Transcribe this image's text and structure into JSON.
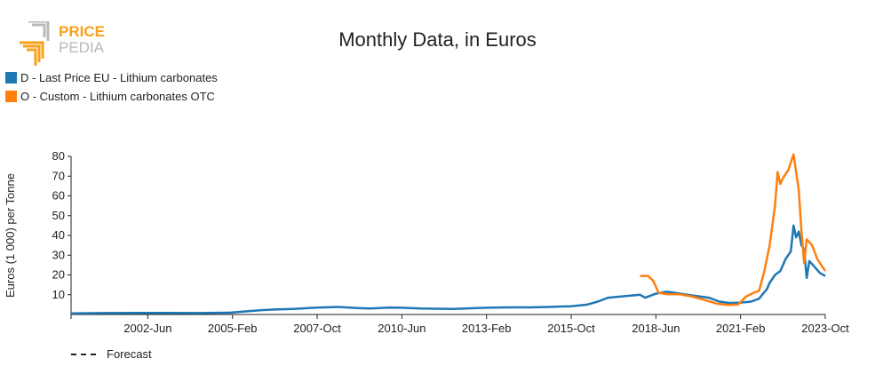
{
  "logo": {
    "line1": "PRICE",
    "line2": "PEDIA"
  },
  "chart_data": {
    "type": "line",
    "title": "Monthly Data, in Euros",
    "xlabel": "",
    "ylabel": "Euros (1 000) per Tonne",
    "ylim": [
      0,
      80
    ],
    "xlim": [
      "2000-01",
      "2023-10"
    ],
    "x_ticks": [
      "2002-Jun",
      "2005-Feb",
      "2007-Oct",
      "2010-Jun",
      "2013-Feb",
      "2015-Oct",
      "2018-Jun",
      "2021-Feb",
      "2023-Oct"
    ],
    "x_tick_dates": [
      "2002-06",
      "2005-02",
      "2007-10",
      "2010-06",
      "2013-02",
      "2015-10",
      "2018-06",
      "2021-02",
      "2023-10"
    ],
    "y_ticks": [
      10,
      20,
      30,
      40,
      50,
      60,
      70,
      80
    ],
    "legend_position": "top-left",
    "series": [
      {
        "name": "D - Last Price EU - Lithium carbonates",
        "color": "#1f77b4",
        "points": [
          [
            "2000-01",
            0.6
          ],
          [
            "2001-01",
            0.7
          ],
          [
            "2002-01",
            0.8
          ],
          [
            "2003-01",
            0.8
          ],
          [
            "2004-01",
            0.7
          ],
          [
            "2005-01",
            0.9
          ],
          [
            "2005-06",
            1.5
          ],
          [
            "2006-01",
            2.2
          ],
          [
            "2006-06",
            2.5
          ],
          [
            "2007-01",
            2.8
          ],
          [
            "2007-10",
            3.5
          ],
          [
            "2008-06",
            3.8
          ],
          [
            "2009-01",
            3.3
          ],
          [
            "2009-06",
            3.0
          ],
          [
            "2010-01",
            3.5
          ],
          [
            "2010-06",
            3.4
          ],
          [
            "2011-01",
            3.0
          ],
          [
            "2011-06",
            2.9
          ],
          [
            "2012-01",
            2.8
          ],
          [
            "2012-06",
            3.0
          ],
          [
            "2013-02",
            3.4
          ],
          [
            "2013-10",
            3.6
          ],
          [
            "2014-06",
            3.6
          ],
          [
            "2015-02",
            3.8
          ],
          [
            "2015-10",
            4.2
          ],
          [
            "2016-04",
            5.0
          ],
          [
            "2016-08",
            6.5
          ],
          [
            "2016-12",
            8.5
          ],
          [
            "2017-04",
            9.0
          ],
          [
            "2017-08",
            9.5
          ],
          [
            "2017-12",
            10.0
          ],
          [
            "2018-02",
            8.5
          ],
          [
            "2018-06",
            10.5
          ],
          [
            "2018-10",
            11.5
          ],
          [
            "2019-02",
            10.8
          ],
          [
            "2019-06",
            10.0
          ],
          [
            "2019-10",
            9.2
          ],
          [
            "2020-02",
            8.5
          ],
          [
            "2020-06",
            6.5
          ],
          [
            "2020-10",
            5.8
          ],
          [
            "2021-02",
            6.0
          ],
          [
            "2021-06",
            6.5
          ],
          [
            "2021-09",
            8.0
          ],
          [
            "2021-12",
            13.0
          ],
          [
            "2022-01",
            16.0
          ],
          [
            "2022-03",
            20.0
          ],
          [
            "2022-05",
            22.0
          ],
          [
            "2022-07",
            28.0
          ],
          [
            "2022-09",
            32.0
          ],
          [
            "2022-10",
            45.0
          ],
          [
            "2022-11",
            39.0
          ],
          [
            "2022-12",
            42.0
          ],
          [
            "2023-01",
            35.0
          ],
          [
            "2023-02",
            33.0
          ],
          [
            "2023-03",
            18.5
          ],
          [
            "2023-04",
            27.0
          ],
          [
            "2023-06",
            24.0
          ],
          [
            "2023-08",
            21.0
          ],
          [
            "2023-10",
            19.5
          ]
        ]
      },
      {
        "name": "O - Custom - Lithium carbonates OTC",
        "color": "#ff7f0e",
        "points": [
          [
            "2017-12",
            19.5
          ],
          [
            "2018-03",
            19.5
          ],
          [
            "2018-05",
            17.0
          ],
          [
            "2018-07",
            11.0
          ],
          [
            "2018-10",
            10.3
          ],
          [
            "2019-03",
            10.2
          ],
          [
            "2019-08",
            9.0
          ],
          [
            "2019-12",
            7.5
          ],
          [
            "2020-05",
            5.5
          ],
          [
            "2020-09",
            4.8
          ],
          [
            "2021-01",
            5.0
          ],
          [
            "2021-04",
            9.0
          ],
          [
            "2021-07",
            11.0
          ],
          [
            "2021-09",
            12.0
          ],
          [
            "2021-11",
            22.0
          ],
          [
            "2022-01",
            35.0
          ],
          [
            "2022-03",
            55.0
          ],
          [
            "2022-04",
            72.0
          ],
          [
            "2022-05",
            66.0
          ],
          [
            "2022-06",
            69.0
          ],
          [
            "2022-08",
            73.0
          ],
          [
            "2022-10",
            81.0
          ],
          [
            "2022-12",
            63.0
          ],
          [
            "2023-01",
            42.0
          ],
          [
            "2023-02",
            26.0
          ],
          [
            "2023-03",
            38.0
          ],
          [
            "2023-05",
            35.0
          ],
          [
            "2023-07",
            28.0
          ],
          [
            "2023-10",
            22.0
          ]
        ]
      }
    ],
    "forecast_label": "Forecast"
  }
}
